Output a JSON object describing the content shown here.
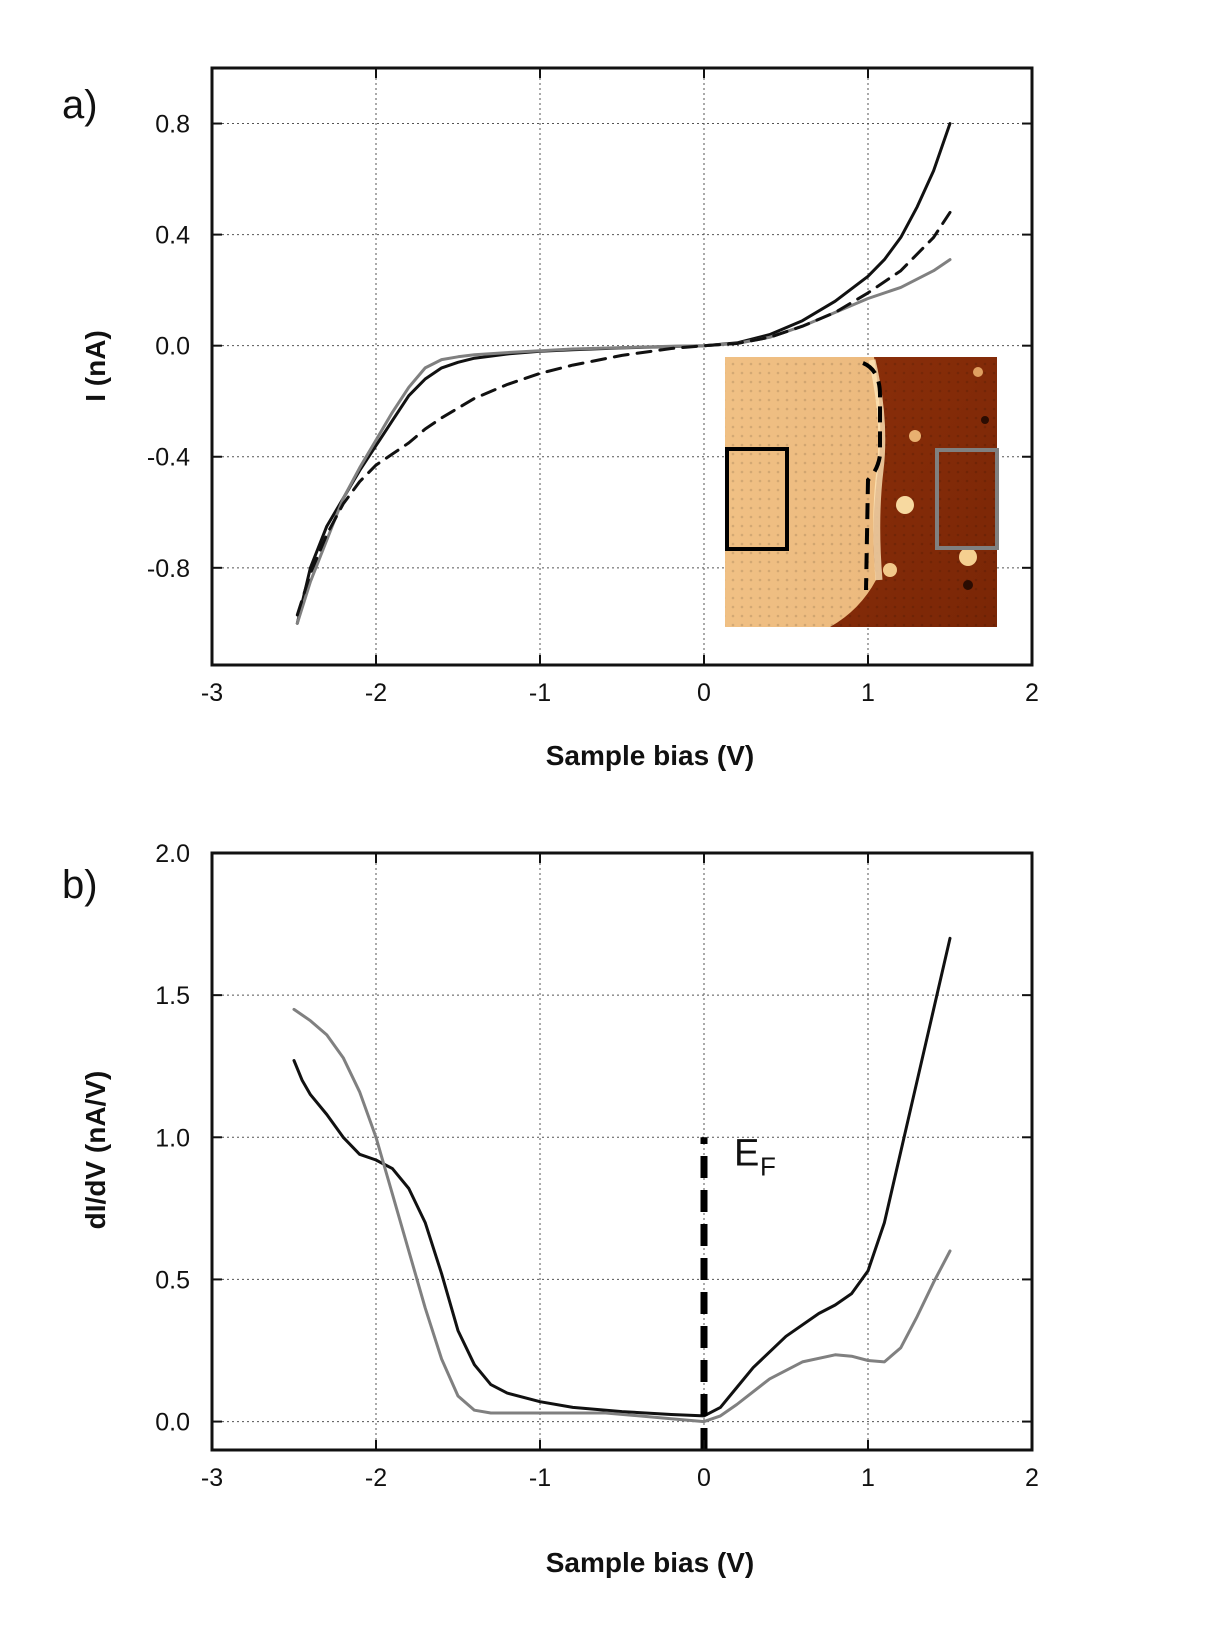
{
  "chart_data": [
    {
      "type": "line",
      "panel": "a)",
      "xlabel": "Sample bias (V)",
      "ylabel": "I (nA)",
      "xlim": [
        -3,
        2
      ],
      "ylim": [
        -1.15,
        1.0
      ],
      "xticks": [
        -3,
        -2,
        -1,
        0,
        1,
        2
      ],
      "yticks": [
        0.8,
        0.4,
        0.0,
        -0.4,
        -0.8
      ],
      "ytick_labels": [
        "0.8",
        "0.4",
        "0.0",
        "-0.4",
        "-0.8"
      ],
      "xtick_labels": [
        "-3",
        "-2",
        "-1",
        "0",
        "1",
        "2"
      ],
      "grid": true,
      "series": [
        {
          "color": "#111111",
          "style": "solid",
          "x": [
            -2.48,
            -2.4,
            -2.3,
            -2.2,
            -2.1,
            -2.0,
            -1.9,
            -1.8,
            -1.7,
            -1.6,
            -1.5,
            -1.4,
            -1.2,
            -1.0,
            -0.8,
            -0.5,
            -0.2,
            0.0,
            0.2,
            0.4,
            0.6,
            0.8,
            1.0,
            1.1,
            1.2,
            1.3,
            1.4,
            1.5
          ],
          "y": [
            -1.0,
            -0.8,
            -0.65,
            -0.55,
            -0.45,
            -0.36,
            -0.27,
            -0.18,
            -0.12,
            -0.08,
            -0.06,
            -0.045,
            -0.03,
            -0.02,
            -0.015,
            -0.008,
            -0.003,
            0.0,
            0.01,
            0.04,
            0.09,
            0.16,
            0.25,
            0.31,
            0.39,
            0.5,
            0.63,
            0.8
          ]
        },
        {
          "color": "#808080",
          "style": "solid",
          "x": [
            -2.48,
            -2.4,
            -2.3,
            -2.2,
            -2.1,
            -2.0,
            -1.9,
            -1.8,
            -1.7,
            -1.6,
            -1.5,
            -1.4,
            -1.2,
            -1.0,
            -0.8,
            -0.5,
            -0.2,
            0.0,
            0.2,
            0.4,
            0.6,
            0.8,
            1.0,
            1.2,
            1.4,
            1.5
          ],
          "y": [
            -1.0,
            -0.85,
            -0.7,
            -0.55,
            -0.44,
            -0.34,
            -0.24,
            -0.15,
            -0.08,
            -0.05,
            -0.04,
            -0.033,
            -0.025,
            -0.018,
            -0.012,
            -0.007,
            -0.002,
            0.0,
            0.008,
            0.03,
            0.07,
            0.12,
            0.17,
            0.21,
            0.27,
            0.31
          ]
        },
        {
          "color": "#111111",
          "style": "dashed",
          "x": [
            -2.48,
            -2.4,
            -2.3,
            -2.2,
            -2.1,
            -2.0,
            -1.9,
            -1.8,
            -1.7,
            -1.6,
            -1.4,
            -1.2,
            -1.0,
            -0.8,
            -0.5,
            -0.2,
            0.0,
            0.2,
            0.4,
            0.6,
            0.8,
            1.0,
            1.2,
            1.4,
            1.5
          ],
          "y": [
            -0.97,
            -0.82,
            -0.68,
            -0.57,
            -0.49,
            -0.43,
            -0.39,
            -0.35,
            -0.3,
            -0.26,
            -0.19,
            -0.14,
            -0.1,
            -0.07,
            -0.035,
            -0.01,
            0.0,
            0.008,
            0.03,
            0.07,
            0.12,
            0.19,
            0.27,
            0.39,
            0.48
          ]
        }
      ]
    },
    {
      "type": "line",
      "panel": "b)",
      "xlabel": "Sample bias (V)",
      "ylabel": "dI/dV (nA/V)",
      "xlim": [
        -3,
        2
      ],
      "ylim": [
        -0.1,
        2.0
      ],
      "xticks": [
        -3,
        -2,
        -1,
        0,
        1,
        2
      ],
      "yticks": [
        2.0,
        1.5,
        1.0,
        0.5,
        0.0
      ],
      "ytick_labels": [
        "2.0",
        "1.5",
        "1.0",
        "0.5",
        "0.0"
      ],
      "xtick_labels": [
        "-3",
        "-2",
        "-1",
        "0",
        "1",
        "2"
      ],
      "grid": true,
      "annotation": {
        "text": "E",
        "subscript": "F",
        "x": 0,
        "line_y": [
          -0.1,
          1.0
        ]
      },
      "series": [
        {
          "color": "#111111",
          "style": "solid",
          "x": [
            -2.5,
            -2.45,
            -2.4,
            -2.3,
            -2.2,
            -2.1,
            -2.0,
            -1.9,
            -1.8,
            -1.7,
            -1.6,
            -1.5,
            -1.4,
            -1.3,
            -1.2,
            -1.0,
            -0.8,
            -0.5,
            -0.2,
            0.0,
            0.1,
            0.2,
            0.3,
            0.5,
            0.7,
            0.8,
            0.9,
            1.0,
            1.1,
            1.2,
            1.3,
            1.4,
            1.5
          ],
          "y": [
            1.27,
            1.2,
            1.15,
            1.08,
            1.0,
            0.94,
            0.92,
            0.89,
            0.82,
            0.7,
            0.52,
            0.32,
            0.2,
            0.13,
            0.1,
            0.07,
            0.05,
            0.035,
            0.025,
            0.02,
            0.05,
            0.12,
            0.19,
            0.3,
            0.38,
            0.41,
            0.45,
            0.53,
            0.7,
            0.95,
            1.2,
            1.45,
            1.7
          ]
        },
        {
          "color": "#808080",
          "style": "solid",
          "x": [
            -2.5,
            -2.4,
            -2.3,
            -2.2,
            -2.1,
            -2.0,
            -1.9,
            -1.8,
            -1.7,
            -1.6,
            -1.5,
            -1.4,
            -1.3,
            -1.2,
            -1.0,
            -0.6,
            -0.2,
            0.0,
            0.1,
            0.2,
            0.4,
            0.6,
            0.8,
            0.9,
            1.0,
            1.1,
            1.2,
            1.3,
            1.4,
            1.5
          ],
          "y": [
            1.45,
            1.41,
            1.36,
            1.28,
            1.16,
            1.0,
            0.8,
            0.6,
            0.4,
            0.22,
            0.09,
            0.04,
            0.03,
            0.03,
            0.03,
            0.03,
            0.01,
            0.0,
            0.02,
            0.06,
            0.15,
            0.21,
            0.235,
            0.23,
            0.215,
            0.21,
            0.26,
            0.37,
            0.49,
            0.6
          ]
        }
      ]
    }
  ]
}
